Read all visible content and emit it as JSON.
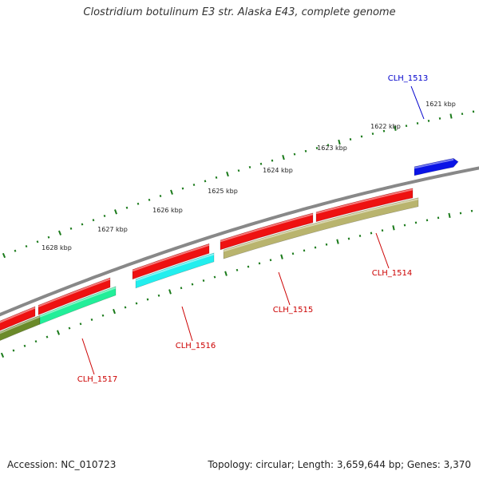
{
  "title": "Clostridium botulinum E3 str. Alaska E43, complete genome",
  "footer": {
    "accession": "Accession: NC_010723",
    "stats": "Topology: circular; Length: 3,659,644 bp; Genes: 3,370"
  },
  "colors": {
    "backbone": "#888888",
    "tick": "#1a7a1a",
    "label_forward": "#0000cc",
    "label_reverse": "#cc0000",
    "leader_forward": "#0000cc",
    "leader_reverse": "#cc0000"
  },
  "kbp_markers": [
    {
      "label": "1621 kbp"
    },
    {
      "label": "1622 kbp"
    },
    {
      "label": "1623 kbp"
    },
    {
      "label": "1624 kbp"
    },
    {
      "label": "1625 kbp"
    },
    {
      "label": "1626 kbp"
    },
    {
      "label": "1627 kbp"
    },
    {
      "label": "1628 kbp"
    }
  ],
  "genes": [
    {
      "name": "CLH_1513",
      "strand": "forward",
      "color": "#0a14e6"
    },
    {
      "name": "CLH_1514",
      "strand": "reverse",
      "color": "#b9b46e"
    },
    {
      "name": "CLH_1515",
      "strand": "reverse",
      "color": "#b9b46e"
    },
    {
      "name": "CLH_1516",
      "strand": "reverse",
      "color": "#22eeee"
    },
    {
      "name": "CLH_1517",
      "strand": "reverse",
      "color": "#22ee99"
    },
    {
      "name": "unlabeled",
      "strand": "reverse",
      "color": "#6b8a2a"
    }
  ],
  "cds_tracks": [
    {
      "color": "#ee1111"
    }
  ]
}
